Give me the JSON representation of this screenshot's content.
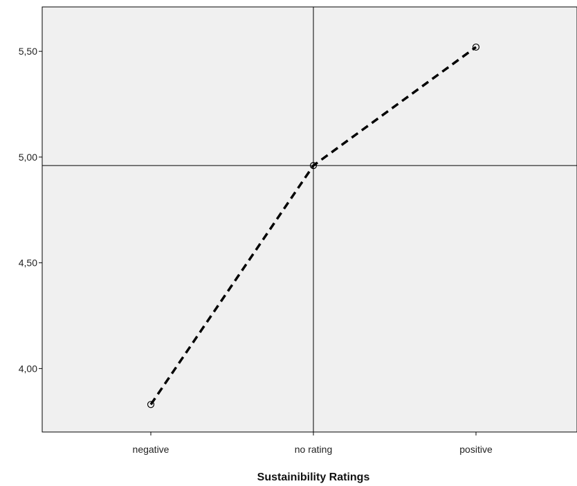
{
  "chart_data": {
    "type": "line",
    "title": "",
    "xlabel": "Sustainibility Ratings",
    "ylabel": "",
    "categories": [
      "negative",
      "no rating",
      "positive"
    ],
    "series": [
      {
        "values": [
          3.83,
          4.96,
          5.52
        ]
      }
    ],
    "ylim": [
      3.7,
      5.71
    ],
    "yticks": [
      4.0,
      4.5,
      5.0,
      5.5
    ],
    "ytick_labels": [
      "4,00",
      "4,50",
      "5,00",
      "5,50"
    ],
    "reference_lines": {
      "x_category": "no rating",
      "y_value": 4.96
    },
    "grid": false,
    "legend": "none",
    "line_style": "dashed",
    "marker": "open-circle",
    "colors": {
      "plot_background": "#f0f0f0",
      "line": "#000000",
      "axis": "#000000"
    }
  }
}
